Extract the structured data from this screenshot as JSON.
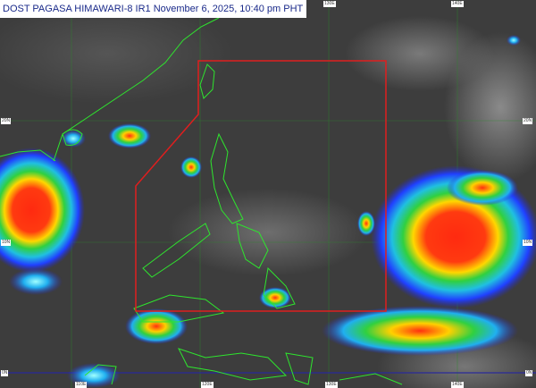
{
  "title": "DOST PAGASA HIMAWARI-8 IR1 November 6, 2025, 10:40 pm PHT",
  "grid_labels": {
    "top": [
      "130E",
      "140E"
    ],
    "bottom": [
      "110E",
      "120E",
      "130E",
      "140E"
    ],
    "left": [
      "20N",
      "10N",
      "0N"
    ],
    "right": [
      "20N",
      "10N",
      "0N"
    ]
  },
  "colors": {
    "coastline": "#2ee52e",
    "par_boundary": "#e01e1e",
    "equator": "#2a2a9a",
    "title_text": "#1a2a8a"
  }
}
